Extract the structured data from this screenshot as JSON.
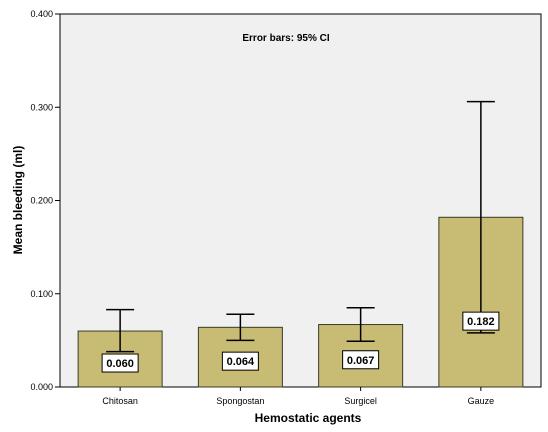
{
  "chart_data": {
    "type": "bar",
    "annotation": "Error bars: 95% CI",
    "xlabel": "Hemostatic agents",
    "ylabel": "Mean bleeding (ml)",
    "categories": [
      "Chitosan",
      "Spongostan",
      "Surgicel",
      "Gauze"
    ],
    "values": [
      0.06,
      0.064,
      0.067,
      0.182
    ],
    "value_labels": [
      "0.060",
      "0.064",
      "0.067",
      "0.182"
    ],
    "ci_lower": [
      0.038,
      0.05,
      0.049,
      0.058
    ],
    "ci_upper": [
      0.083,
      0.078,
      0.085,
      0.306
    ],
    "ylim": [
      0,
      0.4
    ],
    "yticks": [
      0,
      0.1,
      0.2,
      0.3,
      0.4
    ],
    "ytick_labels": [
      "0.000",
      "0.100",
      "0.200",
      "0.300",
      "0.400"
    ],
    "grid": false,
    "colors": {
      "bar_fill": "#c8bb73",
      "bar_stroke": "#3a3a2a",
      "plot_background": "#f0f0f0",
      "axis": "#000000"
    }
  }
}
